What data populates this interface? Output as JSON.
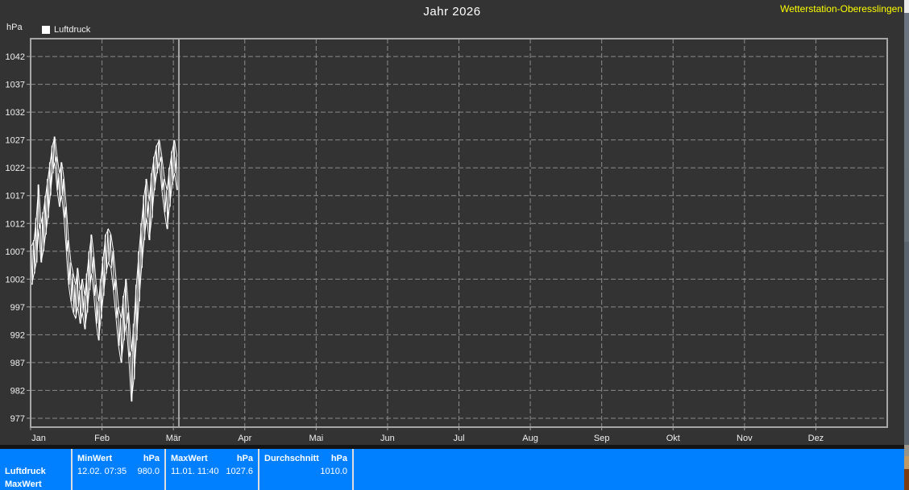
{
  "header": {
    "title": "Jahr 2026",
    "station": "Wetterstation-Oberesslingen",
    "station_color": "#ffff00"
  },
  "chart_data": {
    "type": "line",
    "title": "Jahr 2026",
    "unit": "hPa",
    "legend_label": "Luftdruck",
    "legend_position": "top-left",
    "grid": true,
    "ylim": [
      975.4,
      1045.2
    ],
    "yticks": [
      977,
      982,
      987,
      992,
      997,
      1002,
      1007,
      1012,
      1017,
      1022,
      1027,
      1032,
      1037,
      1042
    ],
    "months": [
      "Jan",
      "Feb",
      "Mär",
      "Apr",
      "Mai",
      "Jun",
      "Jul",
      "Aug",
      "Sep",
      "Okt",
      "Nov",
      "Dez"
    ],
    "calendar_days_per_month": [
      31,
      28,
      31
    ],
    "data_days_per_month": [
      31,
      28,
      2
    ],
    "colors": {
      "background": "#333333",
      "axis": "#a6a6a6",
      "grid": "#8c8c8c",
      "text": "#f0f0f0",
      "line": "#ffffff"
    },
    "series": [
      {
        "name": "Luftdruck",
        "color": "#ffffff",
        "day_minmax": [
          [
            1001,
            1008
          ],
          [
            1003,
            1009
          ],
          [
            1005,
            1013
          ],
          [
            1011,
            1019
          ],
          [
            1005,
            1012
          ],
          [
            1007,
            1014
          ],
          [
            1010,
            1017
          ],
          [
            1013,
            1020
          ],
          [
            1017,
            1023
          ],
          [
            1021,
            1026
          ],
          [
            1023,
            1027.6
          ],
          [
            1018,
            1024
          ],
          [
            1015,
            1021
          ],
          [
            1017,
            1023
          ],
          [
            1013,
            1020
          ],
          [
            1007,
            1015
          ],
          [
            1001,
            1009
          ],
          [
            998,
            1005
          ],
          [
            996,
            1003
          ],
          [
            995,
            1001
          ],
          [
            997,
            1004
          ],
          [
            994,
            1000
          ],
          [
            996,
            1002
          ],
          [
            993,
            999
          ],
          [
            996,
            1003
          ],
          [
            1000,
            1007
          ],
          [
            1003,
            1010
          ],
          [
            999,
            1006
          ],
          [
            994,
            1001
          ],
          [
            991,
            998
          ],
          [
            995,
            1002
          ],
          [
            999,
            1006
          ],
          [
            1003,
            1010
          ],
          [
            1005,
            1011
          ],
          [
            1004,
            1010
          ],
          [
            1000,
            1007
          ],
          [
            995,
            1002
          ],
          [
            990,
            997
          ],
          [
            987,
            995
          ],
          [
            991,
            999
          ],
          [
            994,
            1002
          ],
          [
            988,
            996
          ],
          [
            980,
            989
          ],
          [
            984,
            994
          ],
          [
            991,
            1001
          ],
          [
            998,
            1007
          ],
          [
            1004,
            1012
          ],
          [
            1009,
            1017
          ],
          [
            1013,
            1020
          ],
          [
            1009,
            1016
          ],
          [
            1013,
            1021
          ],
          [
            1018,
            1024
          ],
          [
            1021,
            1026
          ],
          [
            1023,
            1027
          ],
          [
            1018,
            1024
          ],
          [
            1014,
            1020
          ],
          [
            1011,
            1018
          ],
          [
            1015,
            1022
          ],
          [
            1019,
            1025
          ],
          [
            1021,
            1027
          ],
          [
            1018,
            1024
          ]
        ]
      }
    ],
    "current_date_marker": true
  },
  "status_bar": {
    "bg_color": "#0080ff",
    "cells": [
      {
        "label_line2": "Luftdruck",
        "label_line3": "MaxWert"
      },
      {
        "header_left": "MinWert",
        "header_right": "hPa",
        "value_left": "12.02.  07:35",
        "value_right": "980.0"
      },
      {
        "header_left": "MaxWert",
        "header_right": "hPa",
        "value_left": "11.01.  11:40",
        "value_right": "1027.6"
      },
      {
        "header_left": "Durchschnitt",
        "header_right": "hPa",
        "value_left": "",
        "value_right": "1010.0"
      }
    ]
  }
}
